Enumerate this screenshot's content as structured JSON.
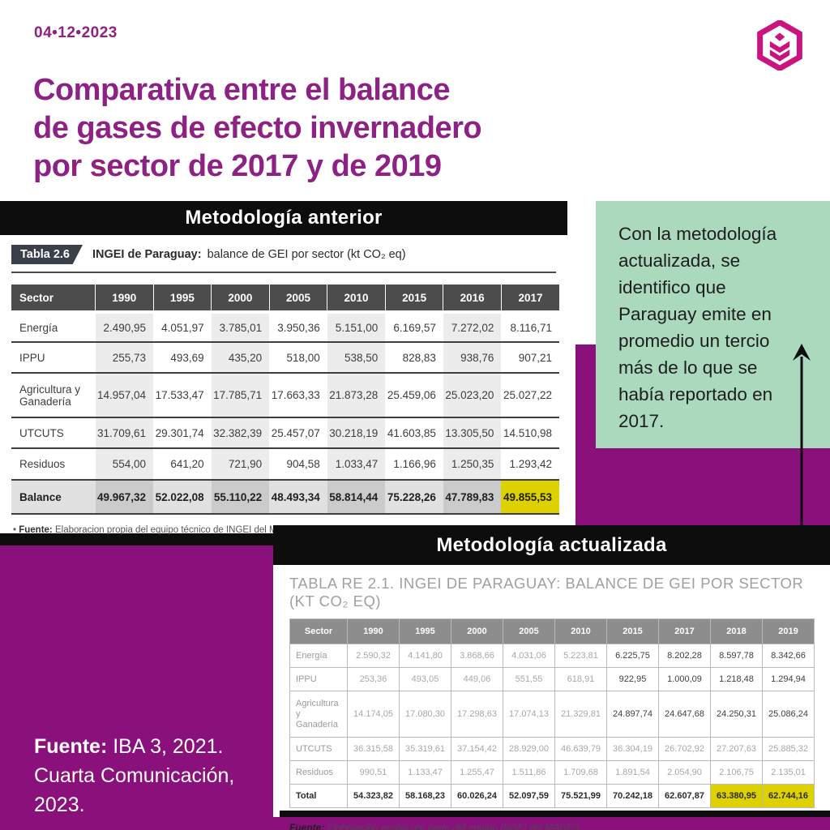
{
  "page": {
    "date": "04•12•2023",
    "title_lines": [
      "Comparativa entre el balance",
      "de gases de efecto invernadero",
      "por sector de 2017 y de 2019"
    ]
  },
  "colors": {
    "purple_block": "#8a107c",
    "title_purple": "#8d2184",
    "logo_magenta": "#c9137f",
    "callout_green": "#abd9bd",
    "highlight_yellow": "#ddd100",
    "black": "#0d0d0d"
  },
  "callout": {
    "text": "Con la metodología actualizada, se identifico que Paraguay emite en promedio un tercio más de lo que se había reportado en 2017."
  },
  "table_old": {
    "section_title": "Metodología anterior",
    "badge": "Tabla 2.6",
    "caption_bold": "INGEI de Paraguay:",
    "caption_rest": "balance de GEI por sector (kt CO₂ eq)",
    "columns": [
      "Sector",
      "1990",
      "1995",
      "2000",
      "2005",
      "2010",
      "2015",
      "2016",
      "2017"
    ],
    "striped_value_cols": [
      0,
      2,
      4,
      6
    ],
    "highlight": {
      "row": 5,
      "col": 7
    },
    "rows": [
      {
        "label": "Energía",
        "values": [
          "2.490,95",
          "4.051,97",
          "3.785,01",
          "3.950,36",
          "5.151,00",
          "6.169,57",
          "7.272,02",
          "8.116,71"
        ]
      },
      {
        "label": "IPPU",
        "values": [
          "255,73",
          "493,69",
          "435,20",
          "518,00",
          "538,50",
          "828,83",
          "938,76",
          "907,21"
        ]
      },
      {
        "label": "Agricultura y Ganadería",
        "values": [
          "14.957,04",
          "17.533,47",
          "17.785,71",
          "17.663,33",
          "21.873,28",
          "25.459,06",
          "25.023,20",
          "25.027,22"
        ]
      },
      {
        "label": "UTCUTS",
        "values": [
          "31.709,61",
          "29.301,74",
          "32.382,39",
          "25.457,07",
          "30.218,19",
          "41.603,85",
          "13.305,50",
          "14.510,98"
        ]
      },
      {
        "label": "Residuos",
        "values": [
          "554,00",
          "641,20",
          "721,90",
          "904,58",
          "1.033,47",
          "1.166,96",
          "1.250,35",
          "1.293,42"
        ]
      },
      {
        "label": "Balance",
        "total": true,
        "values": [
          "49.967,32",
          "52.022,08",
          "55.110,22",
          "48.493,34",
          "58.814,44",
          "75.228,26",
          "47.789,83",
          "49.855,53"
        ]
      }
    ],
    "source_bullet": "•",
    "source_bold": "Fuente:",
    "source_rest": " Elaboracion propia del equipo técnico de INGEI del MADES."
  },
  "table_new": {
    "section_title": "Metodología actualizada",
    "caption": "TABLA RE 2.1. INGEI DE PARAGUAY: BALANCE DE GEI POR SECTOR (KT CO₂ EQ)",
    "columns": [
      "Sector",
      "1990",
      "1995",
      "2000",
      "2005",
      "2010",
      "2015",
      "2017",
      "2018",
      "2019"
    ],
    "highlight_cols": [
      7,
      8
    ],
    "rows": [
      {
        "label": "Energía",
        "emphasis_from": 5,
        "values": [
          "2.590,32",
          "4.141,80",
          "3.868,66",
          "4.031,06",
          "5.223,81",
          "6.225,75",
          "8.202,28",
          "8.597,78",
          "8.342,66"
        ]
      },
      {
        "label": "IPPU",
        "emphasis_from": 5,
        "values": [
          "253,36",
          "493,05",
          "449,06",
          "551,55",
          "618,91",
          "922,95",
          "1.000,09",
          "1.218,48",
          "1.294,94"
        ]
      },
      {
        "label": "Agricultura y Ganadería",
        "emphasis_from": 5,
        "values": [
          "14.174,05",
          "17.080,30",
          "17.298,63",
          "17.074,13",
          "21.329,81",
          "24.897,74",
          "24.647,68",
          "24.250,31",
          "25.086,24"
        ]
      },
      {
        "label": "UTCUTS",
        "values": [
          "36.315,58",
          "35.319,61",
          "37.154,42",
          "28.929,00",
          "46.639,79",
          "36.304,19",
          "26.702,92",
          "27.207,63",
          "25.885,32"
        ]
      },
      {
        "label": "Residuos",
        "values": [
          "990,51",
          "1.133,47",
          "1.255,47",
          "1.511,86",
          "1.709,68",
          "1.891,54",
          "2.054,90",
          "2.106,75",
          "2.135,01"
        ]
      },
      {
        "label": "Total",
        "total": true,
        "values": [
          "54.323,82",
          "58.168,23",
          "60.026,24",
          "52.097,59",
          "75.521,99",
          "70.242,18",
          "62.607,87",
          "63.380,95",
          "62.744,16"
        ]
      }
    ],
    "source_bold": "Fuente:",
    "source_rest": " Elaboración propia por parte del equipo INGEI del MADES"
  },
  "footer": {
    "source_bold": "Fuente:",
    "source_rest": " IBA 3, 2021. Cuarta Comunicación, 2023."
  }
}
